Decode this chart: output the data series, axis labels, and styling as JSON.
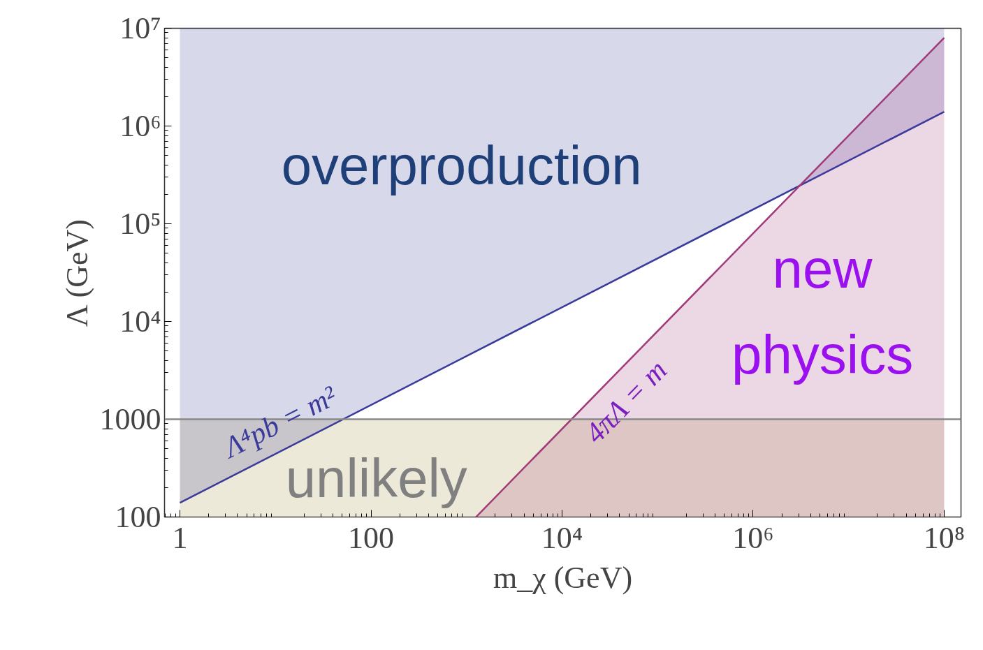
{
  "chart_data": {
    "type": "line",
    "xlabel": "m_χ (GeV)",
    "ylabel": "Λ (GeV)",
    "log": "xy",
    "grid": false,
    "xlim": [
      0.69,
      150000000.0
    ],
    "ylim": [
      100,
      10000000
    ],
    "xticks": [
      1,
      100,
      {
        "value": 10000,
        "label": "10⁴"
      },
      {
        "value": 1000000,
        "label": "10⁶"
      },
      {
        "value": 100000000,
        "label": "10⁸"
      }
    ],
    "yticks": [
      100,
      1000,
      {
        "value": 10000,
        "label": "10⁴"
      },
      {
        "value": 100000,
        "label": "10⁵"
      },
      {
        "value": 1000000,
        "label": "10⁶"
      },
      {
        "value": 10000000,
        "label": "10⁷"
      }
    ],
    "series": [
      {
        "name": "Λ⁴pb = m²",
        "color": "#3a3a9a",
        "x": [
          1,
          100000000
        ],
        "values": [
          140,
          1400000
        ],
        "lower": [
          140,
          1400000
        ],
        "upper": [
          10000000,
          10000000
        ]
      },
      {
        "name": "4πΛ = m",
        "color": "#a03a78",
        "x": [
          1257,
          100000000
        ],
        "values": [
          100,
          8000000
        ],
        "lower": [
          100,
          100
        ],
        "upper": [
          100,
          8000000
        ]
      }
    ],
    "bands": [
      {
        "axis": "y",
        "from": 100,
        "to": 1000,
        "label": "unlikely",
        "color": "#d7cfa8"
      }
    ],
    "ref_lines": [
      {
        "axis": "y",
        "value": 1000,
        "color": "#888888"
      }
    ],
    "annotations": [
      "overproduction",
      "new\nphysics"
    ]
  }
}
